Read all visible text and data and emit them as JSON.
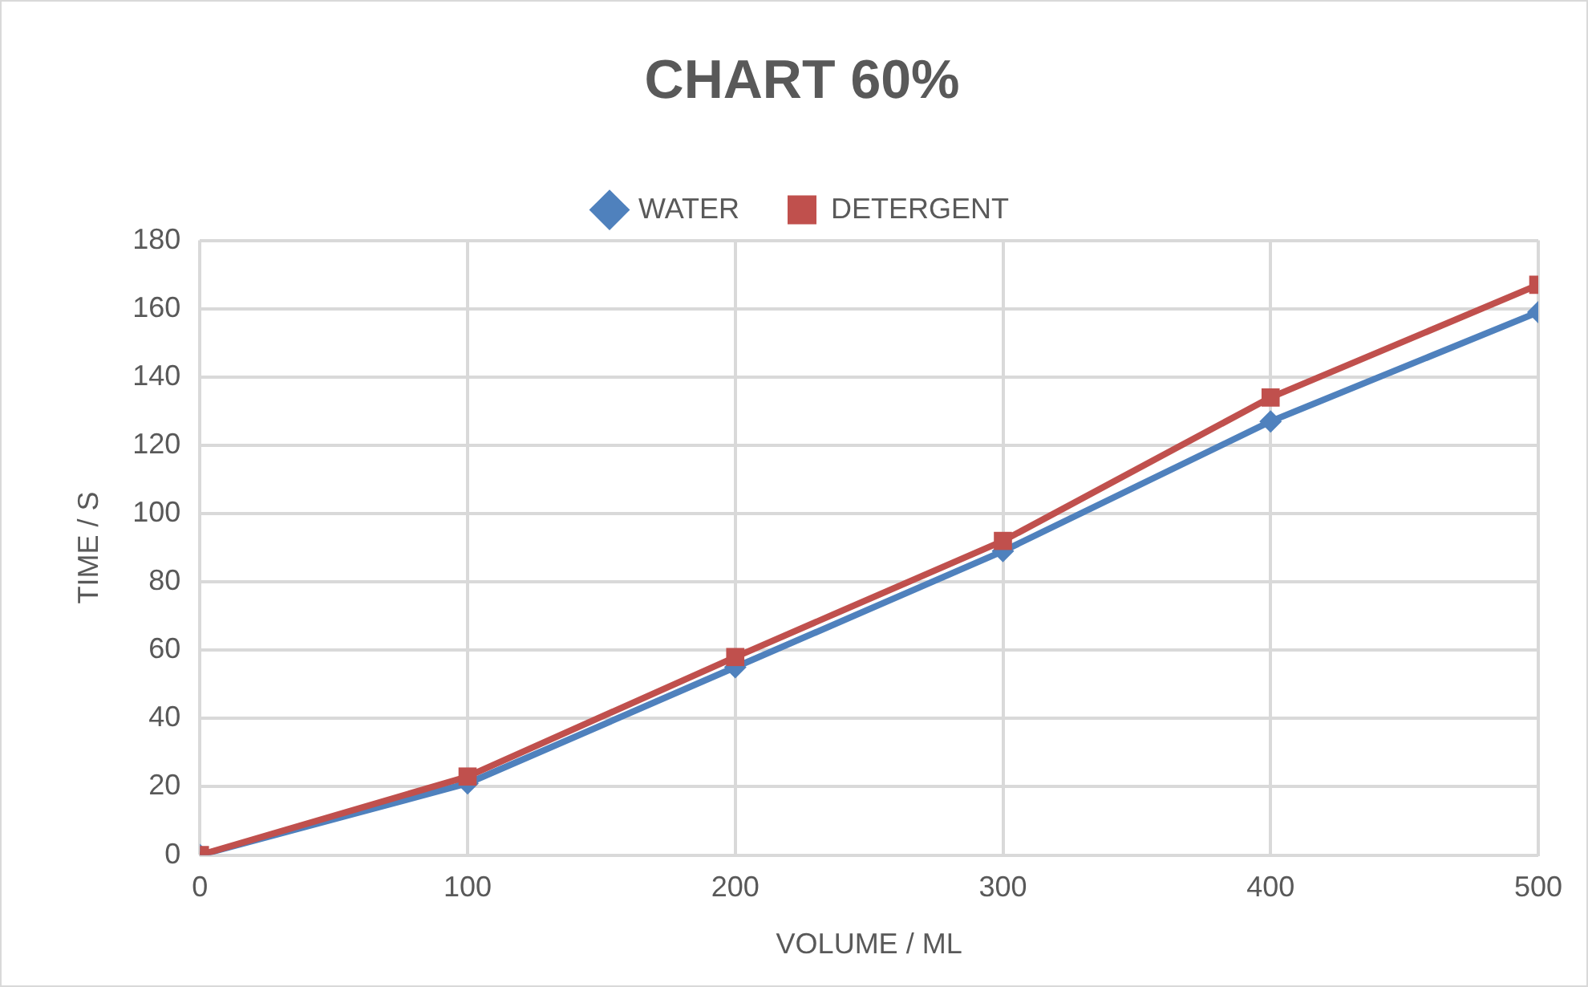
{
  "chart_data": {
    "type": "line",
    "title": "CHART 60%",
    "xlabel": "VOLUME / ML",
    "ylabel": "TIME / S",
    "x": [
      0,
      100,
      200,
      300,
      400,
      500
    ],
    "series": [
      {
        "name": "WATER",
        "color": "#4f81bd",
        "marker": "diamond",
        "values": [
          0,
          21,
          55,
          89,
          127,
          159
        ]
      },
      {
        "name": "DETERGENT",
        "color": "#c0504d",
        "marker": "square",
        "values": [
          0,
          23,
          58,
          92,
          134,
          167
        ]
      }
    ],
    "xlim": [
      0,
      500
    ],
    "xticks": [
      0,
      100,
      200,
      300,
      400,
      500
    ],
    "ylim": [
      0,
      180
    ],
    "yticks": [
      0,
      20,
      40,
      60,
      80,
      100,
      120,
      140,
      160,
      180
    ],
    "grid": true,
    "legend": "top",
    "line_style": "solid"
  }
}
